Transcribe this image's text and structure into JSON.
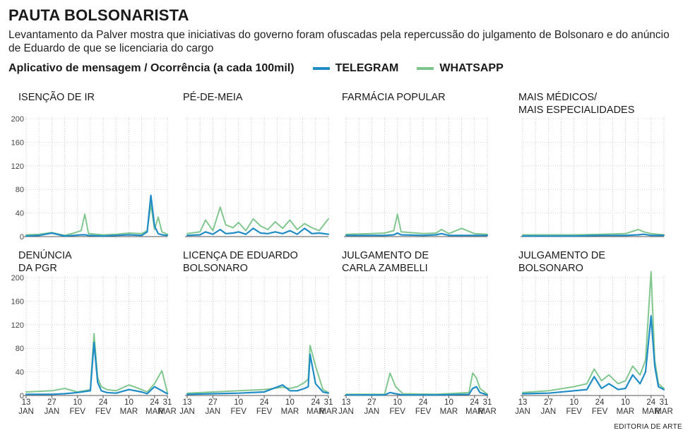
{
  "title": "PAUTA BOLSONARISTA",
  "subtitle": "Levantamento da Palver mostra que iniciativas do governo foram ofuscadas pela repercussão do julgamento de Bolsonaro e do anúncio de Eduardo de que se licenciaria do cargo",
  "legend": {
    "caption": "Aplicativo de mensagem / Ocorrência (a cada 100mil)",
    "items": [
      {
        "label": "TELEGRAM",
        "color": "#1f8cc6"
      },
      {
        "label": "WHATSAPP",
        "color": "#7cc48a"
      }
    ]
  },
  "credit": "EDITORIA DE ARTE",
  "chart_data": {
    "type": "line",
    "ylim": [
      0,
      220
    ],
    "yticks": [
      0,
      40,
      80,
      120,
      160,
      200
    ],
    "x_domain": [
      "2025-01-13",
      "2025-03-31"
    ],
    "x_tick_labels": [
      {
        "day": "13",
        "month": "JAN"
      },
      {
        "day": "27",
        "month": "JAN"
      },
      {
        "day": "10",
        "month": "FEV"
      },
      {
        "day": "24",
        "month": "FEV"
      },
      {
        "day": "10",
        "month": "MAR"
      },
      {
        "day": "24",
        "month": "MAR"
      },
      {
        "day": "31",
        "month": "MAR"
      }
    ],
    "panels": [
      {
        "title": [
          "ISENÇÃO DE IR"
        ],
        "x": [
          "2025-01-13",
          "2025-01-20",
          "2025-01-27",
          "2025-02-03",
          "2025-02-08",
          "2025-02-12",
          "2025-02-14",
          "2025-02-16",
          "2025-02-24",
          "2025-03-03",
          "2025-03-10",
          "2025-03-17",
          "2025-03-20",
          "2025-03-22",
          "2025-03-24",
          "2025-03-26",
          "2025-03-28",
          "2025-03-31"
        ],
        "series": [
          {
            "name": "TELEGRAM",
            "values": [
              1,
              2,
              6,
              1,
              2,
              3,
              3,
              2,
              1,
              2,
              3,
              2,
              8,
              70,
              18,
              5,
              3,
              2
            ]
          },
          {
            "name": "WHATSAPP",
            "values": [
              3,
              4,
              7,
              2,
              6,
              10,
              38,
              5,
              3,
              4,
              6,
              5,
              10,
              55,
              12,
              33,
              8,
              4
            ]
          }
        ]
      },
      {
        "title": [
          "PÉ-DE-MEIA"
        ],
        "x": [
          "2025-01-13",
          "2025-01-20",
          "2025-01-23",
          "2025-01-27",
          "2025-01-31",
          "2025-02-03",
          "2025-02-07",
          "2025-02-10",
          "2025-02-14",
          "2025-02-18",
          "2025-02-22",
          "2025-02-26",
          "2025-03-02",
          "2025-03-06",
          "2025-03-10",
          "2025-03-14",
          "2025-03-18",
          "2025-03-22",
          "2025-03-26",
          "2025-03-31"
        ],
        "series": [
          {
            "name": "TELEGRAM",
            "values": [
              2,
              3,
              8,
              4,
              12,
              5,
              6,
              8,
              4,
              14,
              6,
              5,
              8,
              5,
              10,
              4,
              14,
              5,
              6,
              4
            ]
          },
          {
            "name": "WHATSAPP",
            "values": [
              5,
              8,
              28,
              10,
              50,
              20,
              15,
              24,
              10,
              30,
              18,
              12,
              25,
              14,
              28,
              12,
              22,
              15,
              10,
              30
            ]
          }
        ]
      },
      {
        "title": [
          "FARMÁCIA POPULAR"
        ],
        "x": [
          "2025-01-13",
          "2025-01-27",
          "2025-02-03",
          "2025-02-08",
          "2025-02-10",
          "2025-02-12",
          "2025-02-24",
          "2025-03-03",
          "2025-03-06",
          "2025-03-10",
          "2025-03-17",
          "2025-03-24",
          "2025-03-31"
        ],
        "series": [
          {
            "name": "TELEGRAM",
            "values": [
              2,
              2,
              2,
              3,
              6,
              3,
              2,
              3,
              5,
              2,
              2,
              2,
              2
            ]
          },
          {
            "name": "WHATSAPP",
            "values": [
              4,
              5,
              6,
              10,
              38,
              8,
              5,
              6,
              12,
              5,
              14,
              5,
              4
            ]
          }
        ]
      },
      {
        "title": [
          "MAIS MÉDICOS/",
          "MAIS ESPECIALIDADES"
        ],
        "x": [
          "2025-01-13",
          "2025-01-27",
          "2025-02-10",
          "2025-02-24",
          "2025-03-10",
          "2025-03-17",
          "2025-03-20",
          "2025-03-24",
          "2025-03-31"
        ],
        "series": [
          {
            "name": "TELEGRAM",
            "values": [
              1,
              1,
              1,
              2,
              2,
              3,
              4,
              2,
              2
            ]
          },
          {
            "name": "WHATSAPP",
            "values": [
              3,
              3,
              3,
              4,
              5,
              12,
              8,
              5,
              3
            ]
          }
        ]
      },
      {
        "title": [
          "DENÚNCIA",
          "DA PGR"
        ],
        "x": [
          "2025-01-13",
          "2025-01-27",
          "2025-02-03",
          "2025-02-10",
          "2025-02-17",
          "2025-02-19",
          "2025-02-21",
          "2025-02-23",
          "2025-02-26",
          "2025-03-03",
          "2025-03-10",
          "2025-03-17",
          "2025-03-20",
          "2025-03-24",
          "2025-03-28",
          "2025-03-31"
        ],
        "series": [
          {
            "name": "TELEGRAM",
            "values": [
              2,
              2,
              3,
              5,
              8,
              90,
              22,
              8,
              5,
              4,
              10,
              6,
              3,
              15,
              8,
              3
            ]
          },
          {
            "name": "WHATSAPP",
            "values": [
              6,
              8,
              12,
              6,
              10,
              105,
              30,
              15,
              10,
              8,
              18,
              10,
              6,
              20,
              42,
              5
            ]
          }
        ]
      },
      {
        "title": [
          "LICENÇA DE EDUARDO",
          "BOLSONARO"
        ],
        "x": [
          "2025-01-13",
          "2025-01-27",
          "2025-02-10",
          "2025-02-24",
          "2025-03-06",
          "2025-03-10",
          "2025-03-14",
          "2025-03-18",
          "2025-03-20",
          "2025-03-21",
          "2025-03-24",
          "2025-03-28",
          "2025-03-31"
        ],
        "series": [
          {
            "name": "TELEGRAM",
            "values": [
              2,
              3,
              4,
              6,
              18,
              8,
              8,
              12,
              15,
              70,
              20,
              6,
              4
            ]
          },
          {
            "name": "WHATSAPP",
            "values": [
              4,
              6,
              8,
              10,
              14,
              12,
              15,
              22,
              28,
              85,
              50,
              10,
              5
            ]
          }
        ]
      },
      {
        "title": [
          "JULGAMENTO DE",
          "CARLA ZAMBELLI"
        ],
        "x": [
          "2025-01-13",
          "2025-02-03",
          "2025-02-06",
          "2025-02-09",
          "2025-02-13",
          "2025-03-03",
          "2025-03-21",
          "2025-03-23",
          "2025-03-25",
          "2025-03-27",
          "2025-03-31"
        ],
        "series": [
          {
            "name": "TELEGRAM",
            "values": [
              1,
              1,
              5,
              3,
              1,
              1,
              2,
              12,
              15,
              5,
              1
            ]
          },
          {
            "name": "WHATSAPP",
            "values": [
              2,
              2,
              38,
              15,
              3,
              2,
              5,
              38,
              30,
              12,
              2
            ]
          }
        ]
      },
      {
        "title": [
          "JULGAMENTO DE",
          "BOLSONARO"
        ],
        "x": [
          "2025-01-13",
          "2025-01-27",
          "2025-02-10",
          "2025-02-17",
          "2025-02-21",
          "2025-02-25",
          "2025-03-01",
          "2025-03-06",
          "2025-03-10",
          "2025-03-14",
          "2025-03-18",
          "2025-03-21",
          "2025-03-24",
          "2025-03-26",
          "2025-03-28",
          "2025-03-31"
        ],
        "series": [
          {
            "name": "TELEGRAM",
            "values": [
              3,
              4,
              8,
              10,
              32,
              12,
              20,
              10,
              12,
              35,
              20,
              40,
              135,
              50,
              15,
              10
            ]
          },
          {
            "name": "WHATSAPP",
            "values": [
              5,
              8,
              15,
              20,
              45,
              25,
              35,
              20,
              25,
              50,
              35,
              60,
              210,
              60,
              20,
              12
            ]
          }
        ]
      }
    ]
  }
}
